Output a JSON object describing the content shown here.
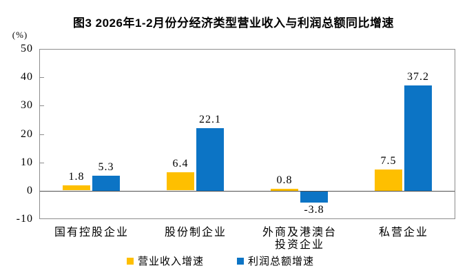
{
  "title": "图3 2026年1-2月份分经济类型营业收入与利润总额同比增速",
  "unit_label": "(%)",
  "chart_data": {
    "type": "bar",
    "title": "图3 2026年1-2月份分经济类型营业收入与利润总额同比增速",
    "categories": [
      "国有控股企业",
      "股份制企业",
      "外商及港澳台\n投资企业",
      "私营企业"
    ],
    "series": [
      {
        "name": "营业收入增速",
        "color": "#FEBF00",
        "values": [
          1.8,
          6.4,
          0.8,
          7.5
        ]
      },
      {
        "name": "利润总额增速",
        "color": "#0C74C5",
        "values": [
          5.3,
          22.1,
          -3.8,
          37.2
        ]
      }
    ],
    "ylabel": "(%)",
    "ylim": [
      -10,
      50
    ],
    "yticks": [
      50,
      40,
      30,
      20,
      10,
      0,
      -10
    ],
    "grid": false,
    "legend_position": "bottom",
    "value_labels": true,
    "frame_color": "#8C8C8C",
    "zero_line_color": "#4D4D4D",
    "text_color": "#000000"
  }
}
